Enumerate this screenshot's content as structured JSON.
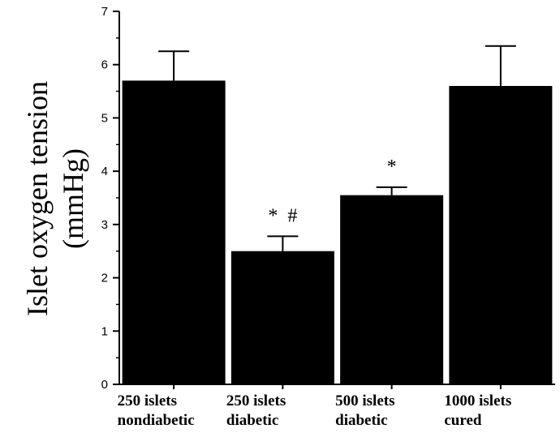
{
  "chart_data": {
    "type": "bar",
    "categories": [
      [
        "250 islets",
        "nondiabetic"
      ],
      [
        "250 islets",
        "diabetic"
      ],
      [
        "500 islets",
        "diabetic"
      ],
      [
        "1000 islets",
        "cured"
      ]
    ],
    "values": [
      5.7,
      2.5,
      3.55,
      5.6
    ],
    "error_upper": [
      0.55,
      0.28,
      0.15,
      0.75
    ],
    "annotations": [
      "",
      "*  #",
      "*",
      ""
    ],
    "ylabel_line1": "Islet oxygen tension",
    "ylabel_line2": "(mmHg)",
    "ylim": [
      0,
      7
    ],
    "yticks": [
      0,
      1,
      2,
      3,
      4,
      5,
      6,
      7
    ],
    "bar_color": "#000000",
    "grid": false
  }
}
